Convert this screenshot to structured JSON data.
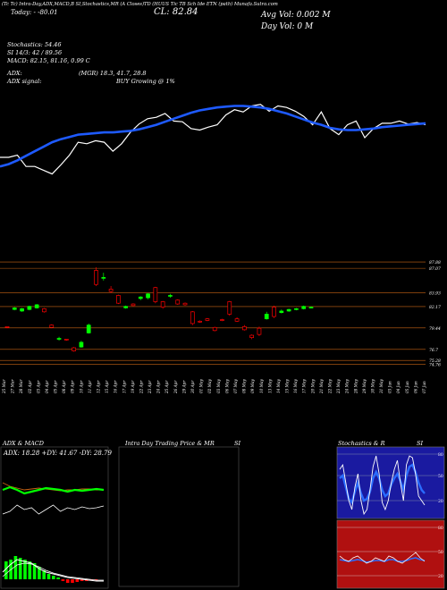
{
  "header": {
    "line1": "(Tc Tc) Intra-Day,ADX,MACD,B     SI,Stochastics,MR     (A Closes)TD     (HUUS Tic TB Sch              Ide ETN (path) Munafa.Sutra.com",
    "change": "Today: -  -80.01",
    "close": "CL: 82.84",
    "avg_vol": "Avg Vol: 0.002  M",
    "day_vol": "Day Vol: 0   M"
  },
  "indicators": {
    "stochastics": "Stochastics: 54.46",
    "si": "SI 14/3: 42  / 89.56",
    "macd": "MACD: 82.15,  81.16, 0.99 C",
    "adx": "ADX:",
    "adx_vals": "(MGR) 18.3,  41.7,  28.8",
    "adx_signal": "ADX  signal:",
    "signal": "BUY Growing @ 1%"
  },
  "price_levels": [
    "87.88",
    "87.07",
    "83.93",
    "82.17",
    "79.44",
    "76.7",
    "75.28",
    "74.76"
  ],
  "x_dates": [
    "25 Mar",
    "27 Mar",
    "28 Mar",
    "02 Apr",
    "03 Apr",
    "04 Apr",
    "05 Apr",
    "08 Apr",
    "09 Apr",
    "10 Apr",
    "11 Apr",
    "12 Apr",
    "15 Apr",
    "16 Apr",
    "17 Apr",
    "19 Apr",
    "22 Apr",
    "23 Apr",
    "24 Apr",
    "25 Apr",
    "26 Apr",
    "29 Apr",
    "30 Apr",
    "01 May",
    "02 May",
    "03 May",
    "06 May",
    "07 May",
    "08 May",
    "09 May",
    "10 May",
    "13 May",
    "14 May",
    "15 May",
    "16 May",
    "17 May",
    "20 May",
    "21 May",
    "22 May",
    "23 May",
    "24 May",
    "28 May",
    "29 May",
    "30 May",
    "31 May",
    "03 Jun",
    "04 Jun",
    "05 Jun",
    "06 Jun",
    "07 Jun"
  ],
  "panels": {
    "adx_title": "ADX  & MACD",
    "adx_readout": "ADX: 18.28  +DY: 41.67  -DY: 28.79",
    "intra_title": "Intra  Day Trading Price  & MR",
    "intra_si": "SI",
    "stoch_title": "Stochastics & R",
    "stoch_si": "SI",
    "stoch_levels": [
      "80",
      "50",
      "20"
    ],
    "rsi_levels": [
      "80",
      "50",
      "20"
    ]
  },
  "colors": {
    "bull": "#00ff00",
    "bear": "#ff0000",
    "ma": "#1e5aff",
    "price_line": "#ffffff",
    "level_line": "#c86414",
    "stoch_bg": "#1a1aa0",
    "rsi_bg": "#b01010"
  },
  "chart_data": [
    {
      "type": "line",
      "title": "",
      "series": [],
      "price_line": [
        52,
        52,
        55,
        40,
        40,
        35,
        30,
        42,
        55,
        72,
        70,
        74,
        72,
        60,
        70,
        85,
        96,
        103,
        105,
        110,
        100,
        99,
        90,
        88,
        92,
        95,
        108,
        115,
        112,
        120,
        122,
        113,
        120,
        118,
        113,
        106,
        95,
        112,
        90,
        82,
        95,
        100,
        78,
        90,
        97,
        97,
        100,
        96,
        98,
        95
      ],
      "ma_line": [
        40,
        43,
        48,
        54,
        60,
        66,
        72,
        76,
        79,
        82,
        83,
        84,
        85,
        85,
        86,
        87,
        89,
        92,
        95,
        99,
        103,
        107,
        111,
        114,
        116,
        118,
        119,
        120,
        120,
        119,
        118,
        116,
        113,
        110,
        106,
        102,
        98,
        95,
        91,
        89,
        88,
        88,
        89,
        90,
        92,
        93,
        94,
        95,
        96,
        97
      ],
      "ylim": [
        0,
        130
      ]
    },
    {
      "type": "bar",
      "title": "",
      "candles": [
        {
          "o": 79.6,
          "c": 79.5,
          "h": 79.6,
          "l": 79.4,
          "u": false
        },
        {
          "o": 81.8,
          "c": 82.0,
          "h": 82.1,
          "l": 81.7,
          "u": true
        },
        {
          "o": 81.6,
          "c": 81.9,
          "h": 82.0,
          "l": 81.5,
          "u": true
        },
        {
          "o": 81.8,
          "c": 82.2,
          "h": 82.3,
          "l": 81.7,
          "u": true
        },
        {
          "o": 82.0,
          "c": 82.4,
          "h": 82.5,
          "l": 81.9,
          "u": true
        },
        {
          "o": 81.9,
          "c": 81.5,
          "h": 82.0,
          "l": 81.4,
          "u": false
        },
        {
          "o": 79.8,
          "c": 79.5,
          "h": 79.9,
          "l": 79.4,
          "u": false
        },
        {
          "o": 78.0,
          "c": 78.1,
          "h": 78.3,
          "l": 77.8,
          "u": true
        },
        {
          "o": 78.0,
          "c": 77.9,
          "h": 78.0,
          "l": 77.8,
          "u": false
        },
        {
          "o": 76.9,
          "c": 76.5,
          "h": 77.0,
          "l": 76.4,
          "u": false
        },
        {
          "o": 77.0,
          "c": 77.6,
          "h": 77.8,
          "l": 76.9,
          "u": true
        },
        {
          "o": 78.8,
          "c": 79.8,
          "h": 80.0,
          "l": 78.7,
          "u": true
        },
        {
          "o": 86.8,
          "c": 85.0,
          "h": 87.2,
          "l": 84.8,
          "u": false
        },
        {
          "o": 85.8,
          "c": 85.9,
          "h": 86.5,
          "l": 85.5,
          "u": true
        },
        {
          "o": 84.4,
          "c": 84.1,
          "h": 84.8,
          "l": 83.9,
          "u": false
        },
        {
          "o": 83.6,
          "c": 82.6,
          "h": 83.7,
          "l": 82.5,
          "u": false
        },
        {
          "o": 82.0,
          "c": 82.2,
          "h": 82.3,
          "l": 81.9,
          "u": true
        },
        {
          "o": 82.5,
          "c": 82.3,
          "h": 82.6,
          "l": 82.2,
          "u": false
        },
        {
          "o": 83.2,
          "c": 83.4,
          "h": 83.5,
          "l": 83.0,
          "u": true
        },
        {
          "o": 83.3,
          "c": 83.8,
          "h": 83.9,
          "l": 83.1,
          "u": true
        },
        {
          "o": 84.6,
          "c": 82.8,
          "h": 84.7,
          "l": 82.6,
          "u": false
        },
        {
          "o": 82.8,
          "c": 82.1,
          "h": 82.9,
          "l": 81.9,
          "u": false
        },
        {
          "o": 83.5,
          "c": 83.6,
          "h": 83.8,
          "l": 83.3,
          "u": true
        },
        {
          "o": 83.0,
          "c": 82.5,
          "h": 83.1,
          "l": 82.4,
          "u": false
        },
        {
          "o": 82.6,
          "c": 82.4,
          "h": 82.7,
          "l": 82.3,
          "u": false
        },
        {
          "o": 81.5,
          "c": 80.0,
          "h": 81.6,
          "l": 79.8,
          "u": false
        },
        {
          "o": 80.3,
          "c": 80.2,
          "h": 80.4,
          "l": 80.1,
          "u": false
        },
        {
          "o": 80.6,
          "c": 80.4,
          "h": 80.7,
          "l": 80.3,
          "u": false
        },
        {
          "o": 79.5,
          "c": 79.1,
          "h": 79.6,
          "l": 79.0,
          "u": false
        },
        {
          "o": 80.5,
          "c": 80.4,
          "h": 80.6,
          "l": 80.3,
          "u": false
        },
        {
          "o": 82.8,
          "c": 81.2,
          "h": 82.9,
          "l": 81.0,
          "u": false
        },
        {
          "o": 80.6,
          "c": 80.3,
          "h": 80.8,
          "l": 80.2,
          "u": false
        },
        {
          "o": 79.6,
          "c": 79.2,
          "h": 79.8,
          "l": 79.1,
          "u": false
        },
        {
          "o": 78.5,
          "c": 78.2,
          "h": 78.6,
          "l": 78.0,
          "u": false
        },
        {
          "o": 79.4,
          "c": 78.6,
          "h": 79.6,
          "l": 78.4,
          "u": false
        },
        {
          "o": 80.6,
          "c": 81.2,
          "h": 81.5,
          "l": 80.5,
          "u": true
        },
        {
          "o": 82.1,
          "c": 80.9,
          "h": 82.3,
          "l": 80.7,
          "u": false
        },
        {
          "o": 81.4,
          "c": 81.6,
          "h": 81.8,
          "l": 81.3,
          "u": true
        },
        {
          "o": 81.6,
          "c": 81.8,
          "h": 81.9,
          "l": 81.5,
          "u": true
        },
        {
          "o": 81.8,
          "c": 81.9,
          "h": 82.0,
          "l": 81.7,
          "u": true
        },
        {
          "o": 81.9,
          "c": 82.2,
          "h": 82.3,
          "l": 81.8,
          "u": true
        },
        {
          "o": 82.1,
          "c": 82.1,
          "h": 82.2,
          "l": 82.0,
          "u": true
        }
      ],
      "ylim": [
        74.5,
        88
      ]
    }
  ]
}
